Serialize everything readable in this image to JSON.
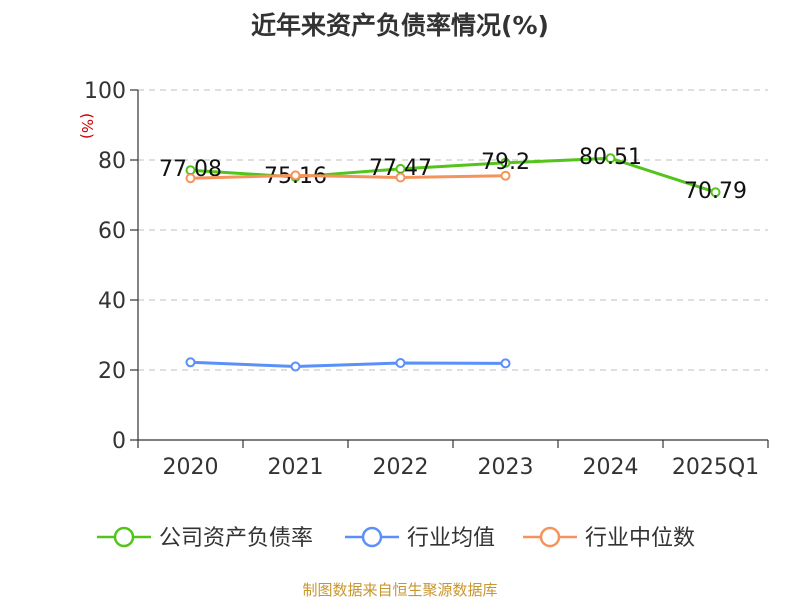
{
  "title": "近年来资产负债率情况(%)",
  "source": "制图数据来自恒生聚源数据库",
  "chart_data": {
    "type": "line",
    "title": "近年来资产负债率情况(%)",
    "ylabel": "(%)",
    "ylim": [
      0,
      100
    ],
    "yticks": [
      0,
      20,
      40,
      60,
      80,
      100
    ],
    "grid": true,
    "legend_position": "bottom",
    "categories": [
      "2020",
      "2021",
      "2022",
      "2023",
      "2024",
      "2025Q1"
    ],
    "series": [
      {
        "name": "公司资产负债率",
        "color": "#52c41a",
        "values": [
          77.08,
          75.16,
          77.47,
          79.2,
          80.51,
          70.79
        ],
        "labels": [
          "77.08",
          "75.16",
          "77.47",
          "79.2",
          "80.51",
          "70.79"
        ]
      },
      {
        "name": "行业均值",
        "color": "#5b8ff9",
        "values": [
          22.2,
          21.0,
          22.0,
          21.9,
          null,
          null
        ]
      },
      {
        "name": "行业中位数",
        "color": "#f4945c",
        "values": [
          74.8,
          75.6,
          75.0,
          75.5,
          null,
          null
        ]
      }
    ]
  }
}
